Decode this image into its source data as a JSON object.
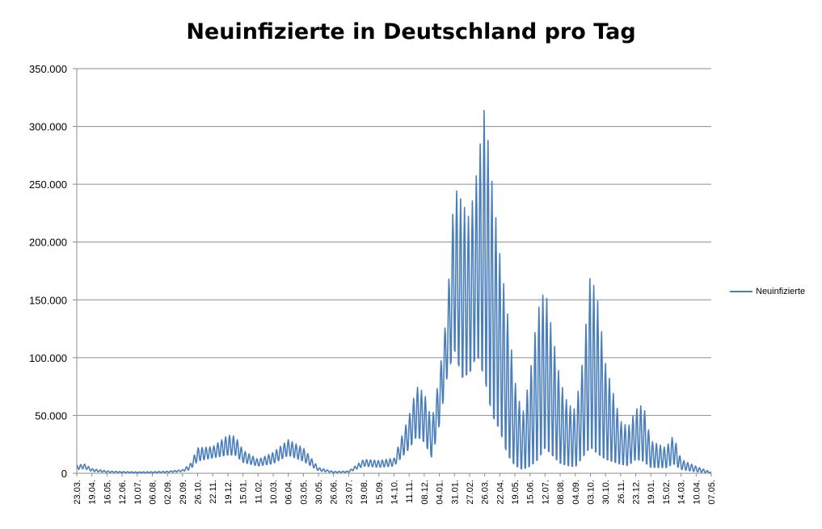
{
  "chart_data": {
    "type": "line",
    "title": "Neuinfizierte in Deutschland pro Tag",
    "xlabel": "",
    "ylabel": "",
    "ylim": [
      0,
      350000
    ],
    "y_ticks": [
      0,
      50000,
      100000,
      150000,
      200000,
      250000,
      300000,
      350000
    ],
    "y_tick_labels": [
      "0",
      "50.000",
      "100.000",
      "150.000",
      "200.000",
      "250.000",
      "300.000",
      "350.000"
    ],
    "x_tick_labels": [
      "23.03.",
      "19.04.",
      "16.05.",
      "12.06.",
      "10.07.",
      "06.08.",
      "02.09.",
      "29.09.",
      "26.10.",
      "22.11.",
      "19.12.",
      "15.01.",
      "11.02.",
      "10.03.",
      "06.04.",
      "03.05.",
      "30.05.",
      "26.06.",
      "23.07.",
      "19.08.",
      "15.09.",
      "14.10.",
      "11.11.",
      "08.12.",
      "04.01.",
      "31.01.",
      "27.02.",
      "26.03.",
      "22.04.",
      "19.05.",
      "15.06.",
      "12.07.",
      "08.08.",
      "04.09.",
      "03.10.",
      "30.10.",
      "26.11.",
      "23.12.",
      "19.01.",
      "15.02.",
      "14.03.",
      "10.04.",
      "07.05."
    ],
    "grid": true,
    "legend": "right",
    "series": [
      {
        "name": "Neuinfizierte",
        "color": "#4a7ebb",
        "envelope": [
          [
            0,
            7000,
            3000
          ],
          [
            0.5,
            8000,
            4000
          ],
          [
            1,
            4000,
            1500
          ],
          [
            2,
            2000,
            800
          ],
          [
            3,
            1500,
            500
          ],
          [
            4,
            1200,
            400
          ],
          [
            5,
            1300,
            500
          ],
          [
            6,
            1800,
            700
          ],
          [
            7,
            3000,
            1500
          ],
          [
            7.5,
            8000,
            3000
          ],
          [
            8,
            22000,
            10000
          ],
          [
            9,
            23000,
            13000
          ],
          [
            10,
            33000,
            15000
          ],
          [
            10.5,
            32000,
            15000
          ],
          [
            11,
            20000,
            9000
          ],
          [
            12,
            12000,
            6000
          ],
          [
            13,
            18000,
            8000
          ],
          [
            14,
            29000,
            15000
          ],
          [
            15,
            22000,
            10000
          ],
          [
            16,
            5000,
            2000
          ],
          [
            17,
            1500,
            500
          ],
          [
            18,
            2000,
            800
          ],
          [
            19,
            12000,
            6000
          ],
          [
            20,
            11000,
            5000
          ],
          [
            21,
            13000,
            6000
          ],
          [
            22,
            50000,
            20000
          ],
          [
            22.5,
            75000,
            30000
          ],
          [
            23,
            70000,
            25000
          ],
          [
            23.5,
            45000,
            12000
          ],
          [
            24,
            85000,
            40000
          ],
          [
            24.5,
            140000,
            80000
          ],
          [
            25,
            248000,
            100000
          ],
          [
            25.5,
            235000,
            75000
          ],
          [
            26,
            220000,
            80000
          ],
          [
            26.5,
            262000,
            95000
          ],
          [
            27,
            318000,
            70000
          ],
          [
            27.5,
            250000,
            40000
          ],
          [
            28,
            190000,
            30000
          ],
          [
            28.5,
            140000,
            10000
          ],
          [
            29,
            80000,
            3000
          ],
          [
            29.5,
            50000,
            1000
          ],
          [
            30,
            85000,
            2000
          ],
          [
            30.5,
            140000,
            5000
          ],
          [
            31,
            160000,
            15000
          ],
          [
            31.5,
            120000,
            10000
          ],
          [
            32,
            80000,
            5000
          ],
          [
            32.5,
            60000,
            4000
          ],
          [
            33,
            55000,
            3000
          ],
          [
            33.5,
            98000,
            10000
          ],
          [
            34,
            174000,
            15000
          ],
          [
            34.5,
            148000,
            10000
          ],
          [
            35,
            95000,
            8000
          ],
          [
            36,
            45000,
            6000
          ],
          [
            36.5,
            40000,
            5000
          ],
          [
            37,
            55000,
            10000
          ],
          [
            37.5,
            60000,
            8000
          ],
          [
            38,
            28000,
            4000
          ],
          [
            39,
            22000,
            4000
          ],
          [
            39.5,
            33000,
            7000
          ],
          [
            40,
            12000,
            3000
          ],
          [
            41,
            6000,
            1000
          ],
          [
            42,
            1000,
            200
          ]
        ]
      }
    ]
  }
}
